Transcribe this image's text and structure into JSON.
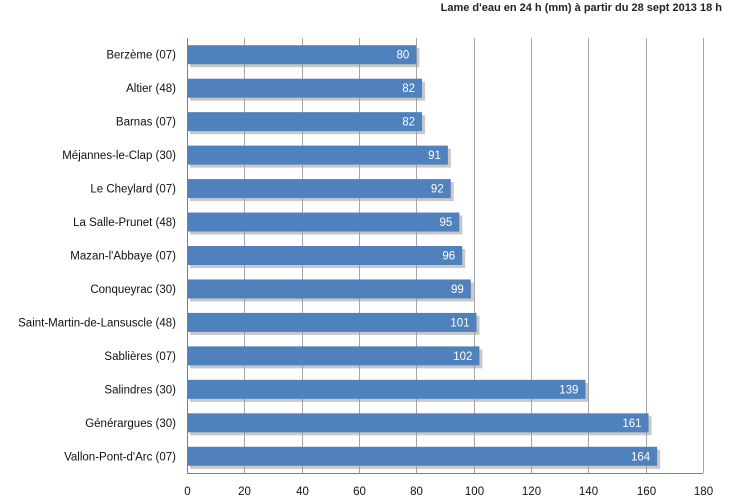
{
  "chart_data": {
    "type": "bar",
    "orientation": "horizontal",
    "title": "Lame d'eau  en 24 h (mm) à partir du 28 sept 2013 18 h",
    "categories": [
      "Berzème (07)",
      "Altier (48)",
      "Barnas (07)",
      "Méjannes-le-Clap (30)",
      "Le Cheylard (07)",
      "La Salle-Prunet (48)",
      "Mazan-l'Abbaye (07)",
      "Conqueyrac (30)",
      "Saint-Martin-de-Lansuscle (48)",
      "Sablières (07)",
      "Salindres (30)",
      "Générargues (30)",
      "Vallon-Pont-d'Arc (07)"
    ],
    "values": [
      80,
      82,
      82,
      91,
      92,
      95,
      96,
      99,
      101,
      102,
      139,
      161,
      164
    ],
    "xlim": [
      0,
      180
    ],
    "xticks": [
      "0",
      "20",
      "40",
      "60",
      "80",
      "100",
      "120",
      "140",
      "160",
      "180"
    ],
    "grid": true,
    "legend": false,
    "bar_color": "#4f81bd",
    "shadow_color": "#9a9a9a"
  }
}
